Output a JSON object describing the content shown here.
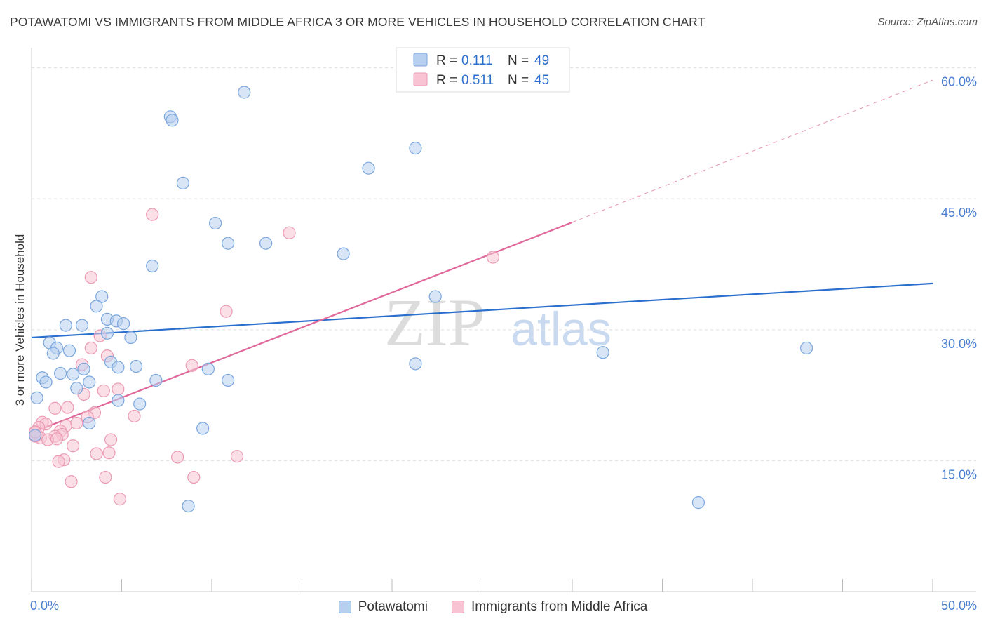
{
  "title": "POTAWATOMI VS IMMIGRANTS FROM MIDDLE AFRICA 3 OR MORE VEHICLES IN HOUSEHOLD CORRELATION CHART",
  "source": "Source: ZipAtlas.com",
  "watermark": {
    "zip": "ZIP",
    "atlas": "atlas"
  },
  "colors": {
    "blue_fill": "#b8d0f0",
    "blue_stroke": "#7aa6dd",
    "blue_line": "#2b6fce",
    "pink_fill": "#f8c4d4",
    "pink_stroke": "#ec9ab4",
    "pink_line": "#e0689a",
    "tick_text": "#4a7fd0",
    "grid": "#dddddd"
  },
  "stats_legend": [
    {
      "r_label": "R =",
      "r_value": "0.111",
      "n_label": "N =",
      "n_value": "49"
    },
    {
      "r_label": "R =",
      "r_value": "0.511",
      "n_label": "N =",
      "n_value": "45"
    }
  ],
  "chart_data": {
    "type": "scatter",
    "title": "POTAWATOMI VS IMMIGRANTS FROM MIDDLE AFRICA 3 OR MORE VEHICLES IN HOUSEHOLD CORRELATION CHART",
    "xlabel": "",
    "ylabel": "3 or more Vehicles in Household",
    "xlim": [
      0,
      50
    ],
    "ylim": [
      0,
      61.5
    ],
    "x_tick_labels": [
      "0.0%",
      "50.0%"
    ],
    "y_ticks": [
      15,
      30,
      45,
      60
    ],
    "y_tick_labels": [
      "15.0%",
      "30.0%",
      "45.0%",
      "60.0%"
    ],
    "grid": true,
    "legend_position": "bottom-center",
    "series": [
      {
        "name": "Potawatomi",
        "points": [
          [
            11.8,
            57.2
          ],
          [
            7.7,
            54.4
          ],
          [
            7.8,
            54.0
          ],
          [
            21.3,
            50.8
          ],
          [
            18.7,
            48.5
          ],
          [
            8.4,
            46.8
          ],
          [
            10.2,
            42.2
          ],
          [
            10.9,
            39.9
          ],
          [
            13.0,
            39.9
          ],
          [
            17.3,
            38.7
          ],
          [
            6.7,
            37.3
          ],
          [
            3.9,
            33.8
          ],
          [
            22.4,
            33.8
          ],
          [
            3.6,
            32.7
          ],
          [
            4.2,
            31.2
          ],
          [
            4.7,
            31.0
          ],
          [
            5.1,
            30.7
          ],
          [
            1.9,
            30.5
          ],
          [
            2.8,
            30.5
          ],
          [
            4.2,
            29.6
          ],
          [
            5.5,
            29.1
          ],
          [
            1.0,
            28.5
          ],
          [
            1.4,
            27.9
          ],
          [
            2.1,
            27.6
          ],
          [
            1.2,
            27.3
          ],
          [
            31.7,
            27.4
          ],
          [
            43.0,
            27.9
          ],
          [
            4.4,
            26.3
          ],
          [
            5.8,
            25.8
          ],
          [
            21.3,
            26.1
          ],
          [
            2.9,
            25.5
          ],
          [
            4.8,
            25.7
          ],
          [
            9.8,
            25.5
          ],
          [
            0.6,
            24.5
          ],
          [
            2.3,
            24.9
          ],
          [
            1.6,
            25.0
          ],
          [
            0.8,
            24.0
          ],
          [
            3.2,
            24.0
          ],
          [
            6.9,
            24.2
          ],
          [
            10.9,
            24.2
          ],
          [
            2.5,
            23.3
          ],
          [
            0.3,
            22.2
          ],
          [
            4.8,
            21.9
          ],
          [
            6.0,
            21.5
          ],
          [
            3.2,
            19.3
          ],
          [
            9.5,
            18.7
          ],
          [
            0.2,
            17.9
          ],
          [
            8.7,
            9.8
          ],
          [
            37.0,
            10.2
          ]
        ]
      },
      {
        "name": "Immigrants from Middle Africa",
        "points": [
          [
            6.7,
            43.2
          ],
          [
            14.3,
            41.1
          ],
          [
            25.6,
            38.3
          ],
          [
            3.3,
            36.0
          ],
          [
            10.8,
            32.1
          ],
          [
            3.8,
            29.3
          ],
          [
            3.3,
            27.9
          ],
          [
            4.2,
            27.0
          ],
          [
            2.8,
            26.0
          ],
          [
            8.9,
            25.9
          ],
          [
            4.0,
            23.0
          ],
          [
            4.8,
            23.2
          ],
          [
            2.9,
            22.6
          ],
          [
            2.0,
            21.1
          ],
          [
            1.3,
            21.0
          ],
          [
            3.5,
            20.5
          ],
          [
            3.1,
            20.0
          ],
          [
            5.7,
            20.1
          ],
          [
            2.5,
            19.3
          ],
          [
            1.9,
            19.0
          ],
          [
            0.6,
            19.4
          ],
          [
            0.8,
            19.2
          ],
          [
            0.4,
            18.8
          ],
          [
            1.6,
            18.4
          ],
          [
            0.2,
            18.2
          ],
          [
            1.7,
            18.0
          ],
          [
            1.3,
            17.8
          ],
          [
            0.3,
            17.9
          ],
          [
            0.5,
            17.6
          ],
          [
            0.9,
            17.4
          ],
          [
            1.4,
            17.5
          ],
          [
            4.4,
            17.4
          ],
          [
            2.3,
            16.7
          ],
          [
            0.2,
            17.8
          ],
          [
            3.6,
            15.8
          ],
          [
            4.3,
            15.9
          ],
          [
            1.8,
            15.1
          ],
          [
            8.1,
            15.4
          ],
          [
            11.4,
            15.5
          ],
          [
            1.5,
            14.9
          ],
          [
            4.1,
            13.1
          ],
          [
            9.0,
            13.1
          ],
          [
            2.2,
            12.6
          ],
          [
            4.9,
            10.6
          ],
          [
            0.2,
            18.3
          ]
        ]
      }
    ],
    "trendlines": [
      {
        "series": "Potawatomi",
        "x": [
          0,
          50
        ],
        "y": [
          29.1,
          35.3
        ],
        "style": "solid"
      },
      {
        "series": "Immigrants from Middle Africa",
        "x": [
          0,
          30
        ],
        "y": [
          18.2,
          42.3
        ],
        "style": "solid"
      },
      {
        "series": "Immigrants from Middle Africa",
        "x": [
          30,
          50
        ],
        "y": [
          42.3,
          58.6
        ],
        "style": "dashed"
      }
    ]
  }
}
